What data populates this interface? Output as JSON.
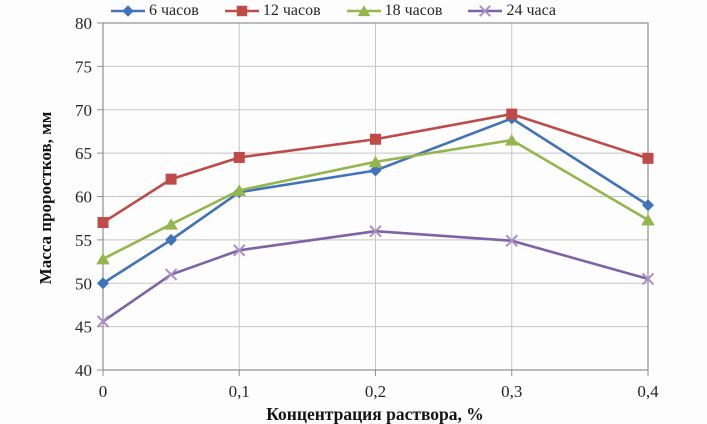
{
  "page": {
    "background": "#fdfdfd"
  },
  "chart_data": {
    "type": "line",
    "title": "",
    "xlabel": "Концентрация раствора, %",
    "ylabel": "Масса проростков, мм",
    "xlim": [
      0,
      0.4
    ],
    "ylim": [
      40,
      80
    ],
    "grid": true,
    "legend_position": "top",
    "x": [
      0,
      0.05,
      0.1,
      0.2,
      0.3,
      0.4
    ],
    "x_tick_values": [
      0,
      0.1,
      0.2,
      0.3,
      0.4
    ],
    "x_tick_labels": [
      "0",
      "0,1",
      "0,2",
      "0,3",
      "0,4"
    ],
    "y_ticks": [
      40,
      45,
      50,
      55,
      60,
      65,
      70,
      75,
      80
    ],
    "series": [
      {
        "name": "6 часов",
        "marker": "diamond",
        "color": "#4173B8",
        "marker_color": "#4173B8",
        "values": [
          50,
          55,
          60.5,
          63,
          69,
          59
        ]
      },
      {
        "name": "12 часов",
        "marker": "square",
        "color": "#BE4B48",
        "marker_color": "#BE4B48",
        "values": [
          57,
          62,
          64.5,
          66.6,
          69.5,
          64.4
        ]
      },
      {
        "name": "18 часов",
        "marker": "triangle",
        "color": "#94B64C",
        "marker_color": "#94B64C",
        "values": [
          52.8,
          56.8,
          60.7,
          64,
          66.5,
          57.3
        ]
      },
      {
        "name": "24 часа",
        "marker": "x",
        "color": "#7E62A8",
        "marker_color": "#A98FC7",
        "values": [
          45.6,
          51,
          53.8,
          56,
          54.9,
          50.5
        ]
      }
    ],
    "colors": {
      "gridline": "#c6c6c6",
      "frame": "#8f8f8f",
      "text": "#262626"
    }
  }
}
